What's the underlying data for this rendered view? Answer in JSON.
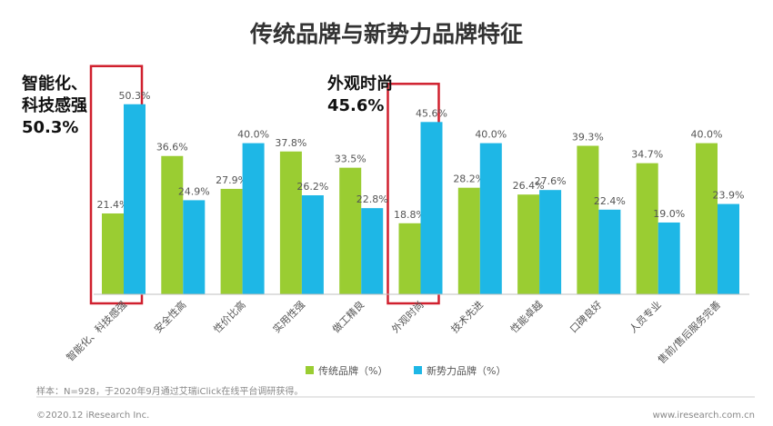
{
  "chart_data": {
    "type": "bar",
    "title": "传统品牌与新势力品牌特征",
    "categories": [
      "智能化、科技感强",
      "安全性高",
      "性价比高",
      "实用性强",
      "做工精良",
      "外观时尚",
      "技术先进",
      "性能卓越",
      "口碑良好",
      "人员专业",
      "售前/售后服务完善"
    ],
    "series": [
      {
        "name": "传统品牌（%）",
        "color": "#9ACD32",
        "values": [
          21.4,
          36.6,
          27.9,
          37.8,
          33.5,
          18.8,
          28.2,
          26.4,
          39.3,
          34.7,
          40.0
        ],
        "labels": [
          "21.4%",
          "36.6%",
          "27.9%",
          "37.8%",
          "33.5%",
          "18.8%",
          "28.2%",
          "26.4%",
          "39.3%",
          "34.7%",
          "40.0%"
        ]
      },
      {
        "name": "新势力品牌（%）",
        "color": "#1EB7E6",
        "values": [
          50.3,
          24.9,
          40.0,
          26.2,
          22.8,
          45.6,
          40.0,
          27.6,
          22.4,
          19.0,
          23.9
        ],
        "labels": [
          "50.3%",
          "24.9%",
          "40.0%",
          "26.2%",
          "22.8%",
          "45.6%",
          "40.0%",
          "27.6%",
          "22.4%",
          "19.0%",
          "23.9%"
        ]
      }
    ],
    "ylim": [
      0,
      60
    ],
    "highlighted_categories": [
      "智能化、科技感强",
      "外观时尚"
    ],
    "highlight_color": "#D0202E",
    "legend_position": "bottom",
    "grid": false
  },
  "callouts": [
    {
      "lines": [
        "智能化、",
        "科技感强",
        "50.3%"
      ]
    },
    {
      "lines": [
        "外观时尚",
        "45.6%"
      ]
    }
  ],
  "footnote": "样本：N=928，于2020年9月通过艾瑞iClick在线平台调研获得。",
  "copyright": "©2020.12 iResearch Inc.",
  "website": "www.iresearch.com.cn"
}
